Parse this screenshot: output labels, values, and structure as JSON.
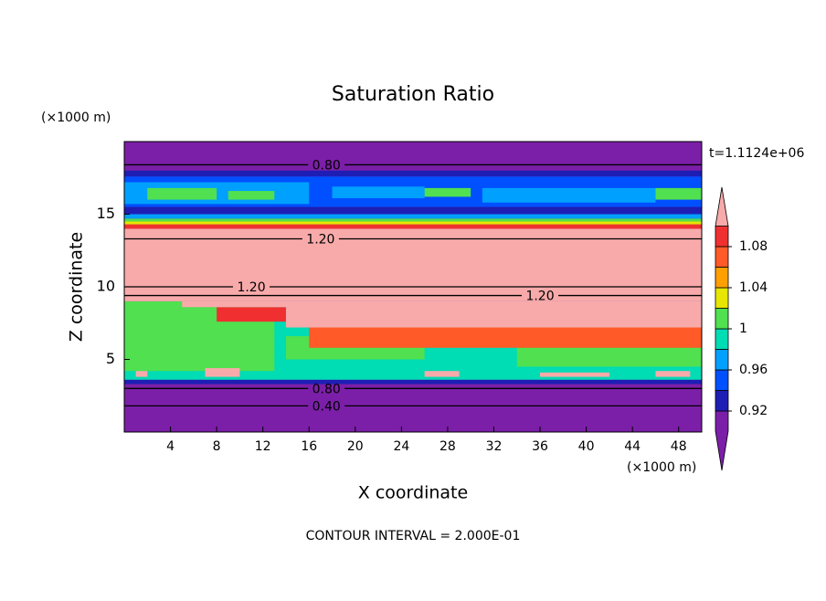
{
  "chart_data": {
    "type": "contour",
    "title": "Saturation Ratio",
    "xlabel": "X coordinate",
    "ylabel": "Z coordinate",
    "x_unit": "(×1000 m)",
    "y_unit": "(×1000 m)",
    "time_label": "t=1.1124e+06",
    "footer": "CONTOUR INTERVAL = 2.000E-01",
    "xlim": [
      0,
      50
    ],
    "ylim": [
      0,
      20
    ],
    "xticks": [
      4,
      8,
      12,
      16,
      20,
      24,
      28,
      32,
      36,
      40,
      44,
      48
    ],
    "yticks": [
      5,
      10,
      15
    ],
    "levels": [
      0.92,
      0.94,
      0.96,
      0.98,
      1,
      1.02,
      1.04,
      1.06,
      1.08,
      1.1
    ],
    "colors": [
      "#7b1fa8",
      "#1e1eb4",
      "#0050ff",
      "#00a0ff",
      "#00dcb4",
      "#50e050",
      "#e6e600",
      "#ffa000",
      "#ff5a28",
      "#f03030",
      "#f8aaaa"
    ],
    "colorbar_ticks": [
      0.92,
      0.96,
      1,
      1.04,
      1.08
    ],
    "field": [
      {
        "x": [
          0,
          50
        ],
        "z": [
          0,
          20
        ],
        "value": 0.5
      },
      {
        "x": [
          0,
          50
        ],
        "z": [
          3.3,
          3.6
        ],
        "value": 0.93
      },
      {
        "x": [
          0,
          50
        ],
        "z": [
          3.6,
          9
        ],
        "value": 0.99
      },
      {
        "x": [
          0,
          13
        ],
        "z": [
          4.2,
          9
        ],
        "value": 1.01
      },
      {
        "x": [
          14,
          26
        ],
        "z": [
          5,
          6.6
        ],
        "value": 1.01
      },
      {
        "x": [
          34,
          50
        ],
        "z": [
          4.5,
          6.2
        ],
        "value": 1.01
      },
      {
        "x": [
          16,
          50
        ],
        "z": [
          5.8,
          7.2
        ],
        "value": 1.07
      },
      {
        "x": [
          8,
          16
        ],
        "z": [
          7.6,
          8.6
        ],
        "value": 1.09
      },
      {
        "x": [
          0,
          50
        ],
        "z": [
          9,
          14
        ],
        "value": 1.2
      },
      {
        "x": [
          14,
          50
        ],
        "z": [
          7.2,
          9
        ],
        "value": 1.2
      },
      {
        "x": [
          5,
          14
        ],
        "z": [
          8.6,
          9
        ],
        "value": 1.2
      },
      {
        "x": [
          1,
          2
        ],
        "z": [
          3.8,
          4.2
        ],
        "value": 1.2
      },
      {
        "x": [
          7,
          10
        ],
        "z": [
          3.8,
          4.4
        ],
        "value": 1.2
      },
      {
        "x": [
          26,
          29
        ],
        "z": [
          3.8,
          4.2
        ],
        "value": 1.2
      },
      {
        "x": [
          36,
          42
        ],
        "z": [
          3.8,
          4.1
        ],
        "value": 1.2
      },
      {
        "x": [
          46,
          49
        ],
        "z": [
          3.8,
          4.2
        ],
        "value": 1.2
      },
      {
        "x": [
          0,
          50
        ],
        "z": [
          14,
          14.3
        ],
        "value": 1.09
      },
      {
        "x": [
          0,
          50
        ],
        "z": [
          14.3,
          14.5
        ],
        "value": 1.03
      },
      {
        "x": [
          0,
          50
        ],
        "z": [
          14.5,
          14.7
        ],
        "value": 1.01
      },
      {
        "x": [
          0,
          50
        ],
        "z": [
          14.7,
          15
        ],
        "value": 0.97
      },
      {
        "x": [
          0,
          50
        ],
        "z": [
          15,
          15.5
        ],
        "value": 0.93
      },
      {
        "x": [
          0,
          50
        ],
        "z": [
          15.5,
          17.6
        ],
        "value": 0.95
      },
      {
        "x": [
          0,
          16
        ],
        "z": [
          15.7,
          17.2
        ],
        "value": 0.97
      },
      {
        "x": [
          2,
          8
        ],
        "z": [
          16,
          16.8
        ],
        "value": 1.01
      },
      {
        "x": [
          9,
          13
        ],
        "z": [
          16,
          16.6
        ],
        "value": 1.01
      },
      {
        "x": [
          18,
          26
        ],
        "z": [
          16.1,
          16.9
        ],
        "value": 0.97
      },
      {
        "x": [
          26,
          30
        ],
        "z": [
          16.2,
          16.8
        ],
        "value": 1.01
      },
      {
        "x": [
          31,
          46
        ],
        "z": [
          15.8,
          16.8
        ],
        "value": 0.97
      },
      {
        "x": [
          46,
          50
        ],
        "z": [
          16,
          16.8
        ],
        "value": 1.01
      },
      {
        "x": [
          0,
          50
        ],
        "z": [
          17.6,
          18
        ],
        "value": 0.93
      }
    ],
    "contours": [
      {
        "level": 0.4,
        "label": "0.40",
        "z": 1.8,
        "label_x": 17.5
      },
      {
        "level": 0.8,
        "label": "0.80",
        "z": 3.0,
        "label_x": 17.5
      },
      {
        "level": 0.8,
        "label": "0.80",
        "z": 18.4,
        "label_x": 17.5
      },
      {
        "level": 1.2,
        "label": "1.20",
        "z": 13.3,
        "label_x": 17
      },
      {
        "level": 1.2,
        "label": "1.20",
        "z": 10.0,
        "label_x": 11
      },
      {
        "level": 1.2,
        "label": "1.20",
        "z": 9.4,
        "label_x": 36
      }
    ]
  }
}
